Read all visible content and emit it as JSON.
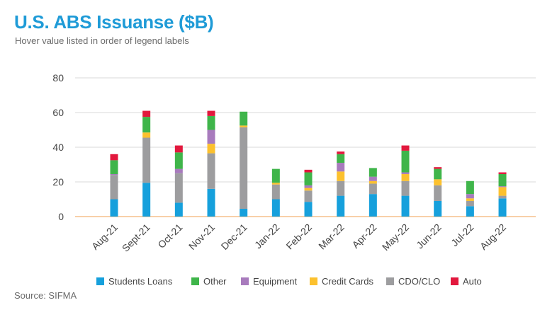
{
  "header": {
    "title": "U.S. ABS Issuanse ($B)",
    "subtitle": "Hover value listed in order of legend labels"
  },
  "footer": {
    "source": "Source: SIFMA"
  },
  "chart_data": {
    "type": "bar",
    "stacked": true,
    "categories": [
      "Aug-21",
      "Sept-21",
      "Oct-21",
      "Nov-21",
      "Dec-21",
      "Jan-22",
      "Feb-22",
      "Mar-22",
      "Apr-22",
      "May-22",
      "Jun-22",
      "Jul-22",
      "Aug-22"
    ],
    "ylim": [
      0,
      80
    ],
    "yticks": [
      0,
      20,
      40,
      60,
      80
    ],
    "grid": true,
    "legend_position": "bottom",
    "series": [
      {
        "name": "Students Loans",
        "color": "#16a0dc",
        "values": [
          10,
          19.5,
          8,
          16,
          4.5,
          10,
          8.5,
          12,
          13,
          12,
          9,
          6,
          10.5
        ]
      },
      {
        "name": "CDO/CLO",
        "color": "#9d9d9f",
        "values": [
          14,
          26,
          17,
          20.5,
          47,
          8.5,
          6.5,
          8.5,
          6,
          8.5,
          9,
          3,
          1.5
        ]
      },
      {
        "name": "Credit Cards",
        "color": "#fcc12e",
        "values": [
          0,
          3,
          0,
          5.5,
          1,
          1,
          1.5,
          5.5,
          1.5,
          4,
          3.5,
          1.5,
          5
        ]
      },
      {
        "name": "Equipment",
        "color": "#a87bbd",
        "values": [
          0.5,
          0,
          2.5,
          8,
          0,
          0,
          1.5,
          5,
          2.5,
          1,
          0,
          2.5,
          0.5
        ]
      },
      {
        "name": "Other",
        "color": "#3fb54a",
        "values": [
          8,
          9,
          9.5,
          8,
          8,
          8,
          7.5,
          5,
          5,
          12.5,
          6,
          7.5,
          7
        ]
      },
      {
        "name": "Auto",
        "color": "#e2183d",
        "values": [
          3.5,
          3.5,
          4,
          3,
          0,
          0,
          1.5,
          1.5,
          0,
          3,
          1,
          0,
          1
        ]
      }
    ],
    "legend": [
      {
        "name": "Students Loans",
        "color": "#16a0dc"
      },
      {
        "name": "Other",
        "color": "#3fb54a"
      },
      {
        "name": "Equipment",
        "color": "#a87bbd"
      },
      {
        "name": "Credit Cards",
        "color": "#fcc12e"
      },
      {
        "name": "CDO/CLO",
        "color": "#9d9d9f"
      },
      {
        "name": "Auto",
        "color": "#e2183d"
      }
    ],
    "axis_color": "#f0a050",
    "grid_color": "#d9d9d9"
  }
}
